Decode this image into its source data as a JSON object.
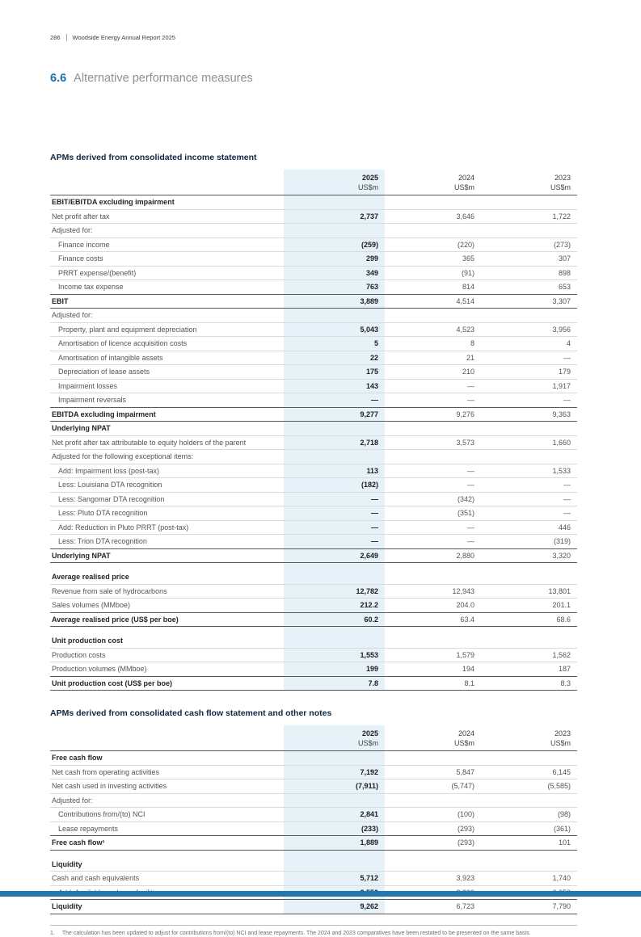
{
  "colors": {
    "accent_blue": "#1a72b0",
    "column_highlight": "#e7f1f8",
    "title_navy": "#0e2841",
    "footer_bar_blue": "#2377ae",
    "rule_dark": "#58595b",
    "rule_light": "#d9dadc"
  },
  "header": {
    "page_number": "286",
    "report_title": "Woodside Energy Annual Report 2025"
  },
  "section": {
    "number": "6.6",
    "title": "Alternative performance measures"
  },
  "tables": [
    {
      "title": "APMs derived from consolidated income statement",
      "col_headers": [
        {
          "year": "2025",
          "unit": "US$m"
        },
        {
          "year": "2024",
          "unit": "US$m"
        },
        {
          "year": "2023",
          "unit": "US$m"
        }
      ],
      "rows": [
        {
          "type": "section",
          "label": "EBIT/EBITDA excluding impairment"
        },
        {
          "type": "normal",
          "label": "Net profit after tax",
          "values": [
            "2,737",
            "3,646",
            "1,722"
          ]
        },
        {
          "type": "plain",
          "label": "Adjusted for:",
          "values": [
            "",
            "",
            ""
          ]
        },
        {
          "type": "normal",
          "indent": true,
          "label": "Finance income",
          "values": [
            "(259)",
            "(220)",
            "(273)"
          ]
        },
        {
          "type": "normal",
          "indent": true,
          "label": "Finance costs",
          "values": [
            "299",
            "365",
            "307"
          ]
        },
        {
          "type": "normal",
          "indent": true,
          "label": "PRRT expense/(benefit)",
          "values": [
            "349",
            "(91)",
            "898"
          ]
        },
        {
          "type": "normal",
          "indent": true,
          "label": "Income tax expense",
          "values": [
            "763",
            "814",
            "653"
          ]
        },
        {
          "type": "total",
          "label": "EBIT",
          "values": [
            "3,889",
            "4,514",
            "3,307"
          ]
        },
        {
          "type": "plain",
          "label": "Adjusted for:",
          "values": [
            "",
            "",
            ""
          ]
        },
        {
          "type": "normal",
          "indent": true,
          "label": "Property, plant and equipment depreciation",
          "values": [
            "5,043",
            "4,523",
            "3,956"
          ]
        },
        {
          "type": "normal",
          "indent": true,
          "label": "Amortisation of licence acquisition costs",
          "values": [
            "5",
            "8",
            "4"
          ]
        },
        {
          "type": "normal",
          "indent": true,
          "label": "Amortisation of intangible assets",
          "values": [
            "22",
            "21",
            "—"
          ]
        },
        {
          "type": "normal",
          "indent": true,
          "label": "Depreciation of lease assets",
          "values": [
            "175",
            "210",
            "179"
          ]
        },
        {
          "type": "normal",
          "indent": true,
          "label": "Impairment losses",
          "values": [
            "143",
            "—",
            "1,917"
          ]
        },
        {
          "type": "normal",
          "indent": true,
          "label": "Impairment reversals",
          "values": [
            "—",
            "—",
            "—"
          ]
        },
        {
          "type": "total",
          "label": "EBITDA excluding impairment",
          "values": [
            "9,277",
            "9,276",
            "9,363"
          ]
        },
        {
          "type": "section",
          "label": "Underlying NPAT"
        },
        {
          "type": "normal",
          "label": "Net profit after tax attributable to equity holders of the parent",
          "values": [
            "2,718",
            "3,573",
            "1,660"
          ]
        },
        {
          "type": "plain",
          "label": "Adjusted for the following exceptional items:",
          "values": [
            "",
            "",
            ""
          ]
        },
        {
          "type": "normal",
          "indent": true,
          "label": "Add: Impairment loss (post-tax)",
          "values": [
            "113",
            "—",
            "1,533"
          ]
        },
        {
          "type": "normal",
          "indent": true,
          "label": "Less: Louisiana DTA recognition",
          "values": [
            "(182)",
            "—",
            "—"
          ]
        },
        {
          "type": "normal",
          "indent": true,
          "label": "Less: Sangomar DTA recognition",
          "values": [
            "—",
            "(342)",
            "—"
          ]
        },
        {
          "type": "normal",
          "indent": true,
          "label": "Less: Pluto DTA recognition",
          "values": [
            "—",
            "(351)",
            "—"
          ]
        },
        {
          "type": "normal",
          "indent": true,
          "label": "Add: Reduction in Pluto PRRT (post-tax)",
          "values": [
            "—",
            "—",
            "446"
          ]
        },
        {
          "type": "normal",
          "indent": true,
          "label": "Less: Trion DTA recognition",
          "values": [
            "—",
            "—",
            "(319)"
          ]
        },
        {
          "type": "total",
          "label": "Underlying NPAT",
          "values": [
            "2,649",
            "2,880",
            "3,320"
          ]
        },
        {
          "type": "spacer"
        },
        {
          "type": "section",
          "label": "Average realised price"
        },
        {
          "type": "normal",
          "label": "Revenue from sale of hydrocarbons",
          "values": [
            "12,782",
            "12,943",
            "13,801"
          ]
        },
        {
          "type": "normal",
          "label": "Sales volumes (MMboe)",
          "values": [
            "212.2",
            "204.0",
            "201.1"
          ]
        },
        {
          "type": "total",
          "label": "Average realised price (US$ per boe)",
          "values": [
            "60.2",
            "63.4",
            "68.6"
          ]
        },
        {
          "type": "spacer"
        },
        {
          "type": "section",
          "label": "Unit production cost"
        },
        {
          "type": "normal",
          "label": "Production costs",
          "values": [
            "1,553",
            "1,579",
            "1,562"
          ]
        },
        {
          "type": "normal",
          "label": "Production volumes (MMboe)",
          "values": [
            "199",
            "194",
            "187"
          ]
        },
        {
          "type": "total",
          "label": "Unit production cost (US$ per boe)",
          "values": [
            "7.8",
            "8.1",
            "8.3"
          ]
        }
      ]
    },
    {
      "title": "APMs derived from consolidated cash flow statement and other notes",
      "col_headers": [
        {
          "year": "2025",
          "unit": "US$m"
        },
        {
          "year": "2024",
          "unit": "US$m"
        },
        {
          "year": "2023",
          "unit": "US$m"
        }
      ],
      "rows": [
        {
          "type": "section",
          "label": "Free cash flow"
        },
        {
          "type": "normal",
          "label": "Net cash from operating activities",
          "values": [
            "7,192",
            "5,847",
            "6,145"
          ]
        },
        {
          "type": "normal",
          "label": "Net cash used in investing activities",
          "values": [
            "(7,911)",
            "(5,747)",
            "(5,585)"
          ]
        },
        {
          "type": "plain",
          "label": "Adjusted for:",
          "values": [
            "",
            "",
            ""
          ]
        },
        {
          "type": "normal",
          "indent": true,
          "label": "Contributions from/(to) NCI",
          "values": [
            "2,841",
            "(100)",
            "(98)"
          ]
        },
        {
          "type": "normal",
          "indent": true,
          "label": "Lease repayments",
          "values": [
            "(233)",
            "(293)",
            "(361)"
          ]
        },
        {
          "type": "total",
          "label": "Free cash flow¹",
          "values": [
            "1,889",
            "(293)",
            "101"
          ]
        },
        {
          "type": "spacer"
        },
        {
          "type": "section",
          "label": "Liquidity"
        },
        {
          "type": "normal",
          "label": "Cash and cash equivalents",
          "values": [
            "5,712",
            "3,923",
            "1,740"
          ]
        },
        {
          "type": "normal",
          "indent": true,
          "label": "Add: Available undrawn facilities",
          "values": [
            "3,550",
            "2,800",
            "6,050"
          ]
        },
        {
          "type": "total",
          "label": "Liquidity",
          "values": [
            "9,262",
            "6,723",
            "7,790"
          ]
        }
      ]
    }
  ],
  "footnote": {
    "marker": "1.",
    "text": "The calculation has been updated to adjust for contributions from/(to) NCI and lease repayments. The 2024 and 2023 comparatives have been restated to be presented on the same basis."
  }
}
